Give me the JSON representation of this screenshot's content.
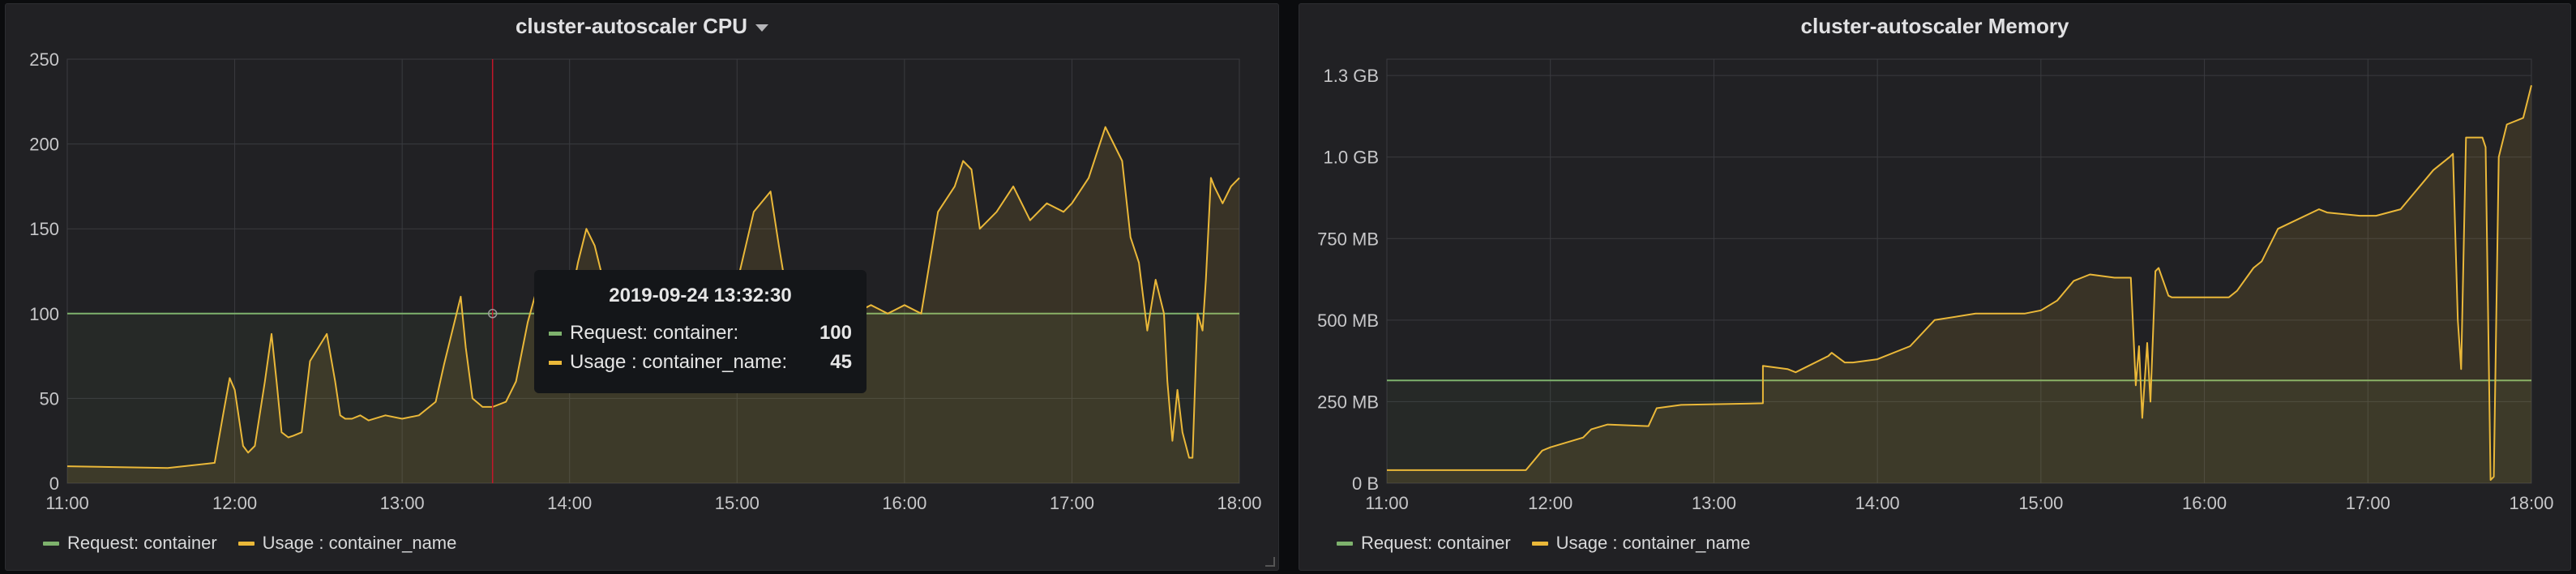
{
  "panels": [
    {
      "title": "cluster-autoscaler CPU",
      "legend": [
        {
          "label": "Request: container",
          "color": "#7eb26d"
        },
        {
          "label": "Usage : container_name",
          "color": "#eab839"
        }
      ],
      "tooltip": {
        "time": "2019-09-24 13:32:30",
        "rows": [
          {
            "label": "Request: container:",
            "value": "100",
            "color": "#7eb26d"
          },
          {
            "label": "Usage : container_name:",
            "value": "45",
            "color": "#eab839"
          }
        ]
      }
    },
    {
      "title": "cluster-autoscaler Memory",
      "legend": [
        {
          "label": "Request: container",
          "color": "#7eb26d"
        },
        {
          "label": "Usage : container_name",
          "color": "#eab839"
        }
      ]
    }
  ],
  "chart_data": [
    {
      "type": "line",
      "title": "cluster-autoscaler CPU",
      "ylim": [
        0,
        250
      ],
      "yticks": [
        "0",
        "50",
        "100",
        "150",
        "200",
        "250"
      ],
      "ytick_values": [
        0,
        50,
        100,
        150,
        200,
        250
      ],
      "xlim": [
        11.0,
        18.0
      ],
      "xticks": [
        "11:00",
        "12:00",
        "13:00",
        "14:00",
        "15:00",
        "16:00",
        "17:00",
        "18:00"
      ],
      "xtick_values": [
        11,
        12,
        13,
        14,
        15,
        16,
        17,
        18
      ],
      "grid": true,
      "legend_position": "bottom-left",
      "hover_x": 13.54,
      "series": [
        {
          "name": "Request: container",
          "color": "#7eb26d",
          "x": [
            11.0,
            18.0
          ],
          "values": [
            100,
            100
          ]
        },
        {
          "name": "Usage : container_name",
          "color": "#eab839",
          "x": [
            11.0,
            11.6,
            11.88,
            11.93,
            11.97,
            12.0,
            12.05,
            12.08,
            12.12,
            12.18,
            12.22,
            12.25,
            12.28,
            12.32,
            12.35,
            12.4,
            12.45,
            12.55,
            12.6,
            12.63,
            12.66,
            12.7,
            12.75,
            12.8,
            12.9,
            13.0,
            13.1,
            13.2,
            13.25,
            13.3,
            13.35,
            13.38,
            13.42,
            13.48,
            13.54,
            13.62,
            13.68,
            13.75,
            13.82,
            13.9,
            13.95,
            14.0,
            14.05,
            14.1,
            14.15,
            14.2,
            14.25,
            14.35,
            14.45,
            14.6,
            14.75,
            14.9,
            15.0,
            15.1,
            15.2,
            15.25,
            15.3,
            15.35,
            15.4,
            15.5,
            15.6,
            15.65,
            15.7,
            15.8,
            15.9,
            16.0,
            16.1,
            16.2,
            16.3,
            16.35,
            16.4,
            16.45,
            16.55,
            16.65,
            16.75,
            16.85,
            16.95,
            17.0,
            17.1,
            17.2,
            17.3,
            17.35,
            17.4,
            17.45,
            17.5,
            17.55,
            17.57,
            17.6,
            17.63,
            17.66,
            17.7,
            17.72,
            17.75,
            17.78,
            17.8,
            17.83,
            17.85,
            17.9,
            17.95,
            18.0
          ],
          "values": [
            10,
            9,
            12,
            40,
            62,
            55,
            22,
            18,
            22,
            60,
            88,
            60,
            30,
            27,
            28,
            30,
            72,
            88,
            60,
            40,
            38,
            38,
            40,
            37,
            40,
            38,
            40,
            48,
            70,
            90,
            110,
            80,
            50,
            45,
            45,
            48,
            60,
            95,
            120,
            100,
            110,
            105,
            130,
            150,
            140,
            120,
            115,
            125,
            110,
            95,
            100,
            95,
            118,
            160,
            172,
            140,
            110,
            95,
            90,
            70,
            60,
            55,
            100,
            105,
            100,
            105,
            100,
            160,
            175,
            190,
            185,
            150,
            160,
            175,
            155,
            165,
            160,
            165,
            180,
            210,
            190,
            145,
            130,
            90,
            120,
            100,
            60,
            25,
            55,
            30,
            15,
            15,
            100,
            90,
            120,
            180,
            175,
            165,
            175,
            180
          ]
        }
      ]
    },
    {
      "type": "line",
      "title": "cluster-autoscaler Memory",
      "ylim": [
        0,
        1300
      ],
      "yticks": [
        "0 B",
        "250 MB",
        "500 MB",
        "750 MB",
        "1.0 GB",
        "1.3 GB"
      ],
      "ytick_values": [
        0,
        250,
        500,
        750,
        1000,
        1250
      ],
      "xlim": [
        11.0,
        18.0
      ],
      "xticks": [
        "11:00",
        "12:00",
        "13:00",
        "14:00",
        "15:00",
        "16:00",
        "17:00",
        "18:00"
      ],
      "xtick_values": [
        11,
        12,
        13,
        14,
        15,
        16,
        17,
        18
      ],
      "grid": true,
      "legend_position": "bottom-left",
      "series": [
        {
          "name": "Request: container",
          "color": "#7eb26d",
          "x": [
            11.0,
            18.0
          ],
          "values": [
            315,
            315
          ]
        },
        {
          "name": "Usage : container_name",
          "color": "#eab839",
          "x": [
            11.0,
            11.85,
            11.95,
            12.0,
            12.2,
            12.25,
            12.35,
            12.6,
            12.65,
            12.8,
            13.3,
            13.3,
            13.45,
            13.5,
            13.7,
            13.72,
            13.8,
            13.85,
            14.0,
            14.2,
            14.35,
            14.6,
            14.9,
            15.0,
            15.1,
            15.15,
            15.2,
            15.25,
            15.3,
            15.45,
            15.55,
            15.58,
            15.6,
            15.62,
            15.65,
            15.67,
            15.7,
            15.72,
            15.78,
            15.8,
            16.15,
            16.2,
            16.3,
            16.35,
            16.45,
            16.7,
            16.75,
            16.95,
            17.05,
            17.2,
            17.25,
            17.4,
            17.5,
            17.52,
            17.55,
            17.57,
            17.6,
            17.7,
            17.72,
            17.75,
            17.77,
            17.8,
            17.85,
            17.95,
            18.0
          ],
          "values": [
            40,
            40,
            100,
            110,
            140,
            165,
            180,
            175,
            230,
            240,
            245,
            360,
            350,
            340,
            390,
            400,
            370,
            370,
            380,
            420,
            500,
            520,
            520,
            530,
            560,
            590,
            620,
            630,
            640,
            630,
            630,
            300,
            420,
            200,
            430,
            250,
            650,
            660,
            575,
            570,
            570,
            590,
            660,
            680,
            780,
            840,
            830,
            820,
            820,
            840,
            870,
            960,
            1000,
            1010,
            500,
            350,
            1060,
            1060,
            1030,
            10,
            20,
            1000,
            1100,
            1120,
            1220
          ]
        }
      ]
    }
  ]
}
